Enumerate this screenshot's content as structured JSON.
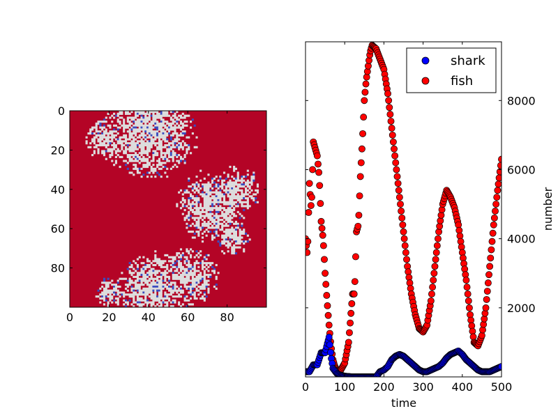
{
  "chart_data": [
    {
      "type": "heatmap",
      "title": "",
      "xlabel": "",
      "ylabel": "",
      "grid_size": 100,
      "xlim": [
        0,
        100
      ],
      "ylim": [
        100,
        0
      ],
      "x_ticks": [
        "0",
        "20",
        "40",
        "60",
        "80"
      ],
      "y_ticks": [
        "0",
        "20",
        "40",
        "60",
        "80"
      ],
      "colors": {
        "fish": "#b40426",
        "shark": "#3b4cc0",
        "empty": "#dddddd"
      },
      "description_values": {
        "empty_regions": [
          {
            "cx": 40,
            "cy": 10,
            "r": 16
          },
          {
            "cx": 18,
            "cy": 14,
            "r": 7
          },
          {
            "cx": 72,
            "cy": 48,
            "r": 12
          },
          {
            "cx": 84,
            "cy": 40,
            "r": 8
          },
          {
            "cx": 42,
            "cy": 90,
            "r": 12
          },
          {
            "cx": 60,
            "cy": 84,
            "r": 10
          },
          {
            "cx": 82,
            "cy": 64,
            "r": 6
          },
          {
            "cx": 20,
            "cy": 92,
            "r": 5
          }
        ]
      }
    },
    {
      "type": "scatter",
      "title": "",
      "xlabel": "time",
      "ylabel": "number",
      "xlim": [
        0,
        500
      ],
      "ylim": [
        0,
        9700
      ],
      "x_ticks": [
        "0",
        "100",
        "200",
        "300",
        "400",
        "500"
      ],
      "y_ticks": [
        "2000",
        "4000",
        "6000",
        "8000"
      ],
      "y_tick_values": [
        2000,
        4000,
        6000,
        8000
      ],
      "x_tick_values": [
        0,
        100,
        200,
        300,
        400,
        500
      ],
      "legend": {
        "position": "top-right",
        "entries": [
          {
            "label": "shark",
            "color": "#0000ff"
          },
          {
            "label": "fish",
            "color": "#ff0000"
          }
        ]
      },
      "series": [
        {
          "name": "shark",
          "color": "#0000ff",
          "points": [
            [
              0,
              150
            ],
            [
              10,
              150
            ],
            [
              20,
              350
            ],
            [
              30,
              350
            ],
            [
              40,
              700
            ],
            [
              50,
              700
            ],
            [
              60,
              1150
            ],
            [
              65,
              600
            ],
            [
              70,
              250
            ],
            [
              80,
              100
            ],
            [
              90,
              50
            ],
            [
              100,
              20
            ],
            [
              120,
              0
            ],
            [
              150,
              0
            ],
            [
              180,
              0
            ],
            [
              190,
              150
            ],
            [
              200,
              200
            ],
            [
              210,
              300
            ],
            [
              220,
              500
            ],
            [
              230,
              600
            ],
            [
              240,
              650
            ],
            [
              250,
              600
            ],
            [
              260,
              500
            ],
            [
              270,
              400
            ],
            [
              280,
              300
            ],
            [
              290,
              200
            ],
            [
              300,
              150
            ],
            [
              310,
              150
            ],
            [
              320,
              200
            ],
            [
              330,
              250
            ],
            [
              340,
              300
            ],
            [
              350,
              400
            ],
            [
              360,
              550
            ],
            [
              370,
              650
            ],
            [
              380,
              700
            ],
            [
              390,
              750
            ],
            [
              400,
              650
            ],
            [
              410,
              500
            ],
            [
              420,
              400
            ],
            [
              430,
              300
            ],
            [
              440,
              200
            ],
            [
              450,
              150
            ],
            [
              460,
              150
            ],
            [
              470,
              150
            ],
            [
              480,
              200
            ],
            [
              490,
              250
            ],
            [
              500,
              300
            ]
          ]
        },
        {
          "name": "fish",
          "color": "#ff0000",
          "points": [
            [
              0,
              4000
            ],
            [
              5,
              3500
            ],
            [
              10,
              5600
            ],
            [
              15,
              4800
            ],
            [
              20,
              6800
            ],
            [
              25,
              6600
            ],
            [
              30,
              6400
            ],
            [
              35,
              5800
            ],
            [
              40,
              4500
            ],
            [
              45,
              4000
            ],
            [
              50,
              3000
            ],
            [
              55,
              2200
            ],
            [
              60,
              1500
            ],
            [
              65,
              900
            ],
            [
              70,
              500
            ],
            [
              75,
              300
            ],
            [
              80,
              200
            ],
            [
              85,
              150
            ],
            [
              90,
              200
            ],
            [
              100,
              400
            ],
            [
              110,
              1000
            ],
            [
              120,
              2400
            ],
            [
              125,
              2400
            ],
            [
              130,
              4200
            ],
            [
              135,
              4400
            ],
            [
              140,
              5800
            ],
            [
              145,
              6800
            ],
            [
              150,
              8000
            ],
            [
              155,
              8600
            ],
            [
              160,
              9000
            ],
            [
              165,
              9400
            ],
            [
              170,
              9600
            ],
            [
              180,
              9500
            ],
            [
              190,
              9200
            ],
            [
              200,
              8900
            ],
            [
              210,
              8200
            ],
            [
              220,
              7200
            ],
            [
              230,
              6200
            ],
            [
              240,
              5200
            ],
            [
              250,
              4200
            ],
            [
              260,
              3200
            ],
            [
              270,
              2400
            ],
            [
              280,
              1800
            ],
            [
              290,
              1400
            ],
            [
              300,
              1300
            ],
            [
              310,
              1500
            ],
            [
              320,
              2200
            ],
            [
              330,
              3200
            ],
            [
              340,
              4200
            ],
            [
              350,
              5000
            ],
            [
              360,
              5400
            ],
            [
              370,
              5200
            ],
            [
              380,
              4900
            ],
            [
              390,
              4400
            ],
            [
              400,
              3600
            ],
            [
              410,
              2800
            ],
            [
              420,
              1800
            ],
            [
              430,
              1000
            ],
            [
              440,
              900
            ],
            [
              450,
              1200
            ],
            [
              460,
              2000
            ],
            [
              470,
              3200
            ],
            [
              480,
              4400
            ],
            [
              490,
              5400
            ],
            [
              500,
              6300
            ]
          ]
        }
      ]
    }
  ]
}
